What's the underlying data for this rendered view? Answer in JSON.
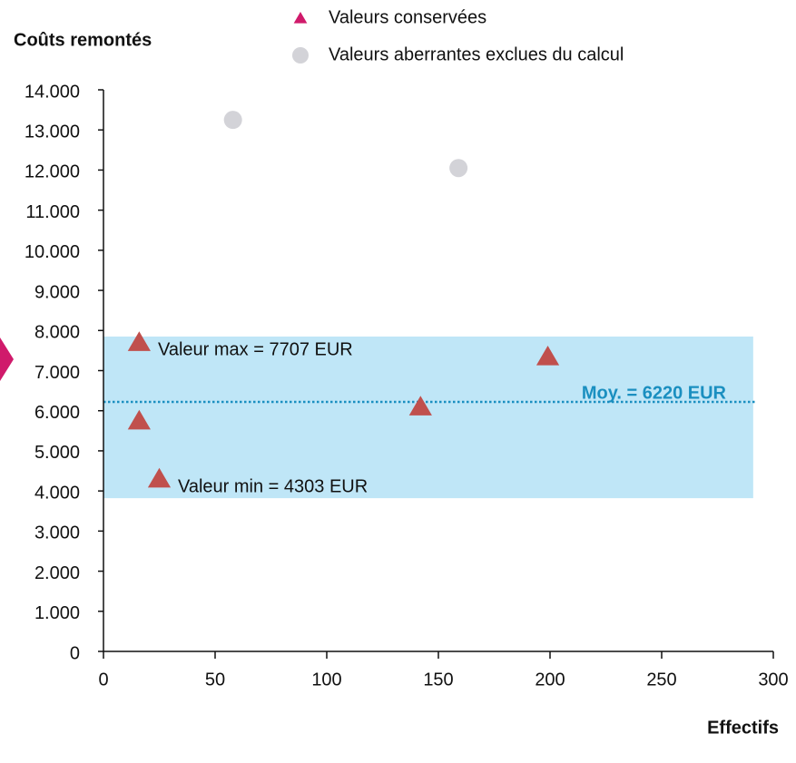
{
  "chart_data": {
    "type": "scatter",
    "y_label": "Coûts remontés",
    "x_label": "Effectifs",
    "series": [
      {
        "name": "Valeurs conservées",
        "marker": "triangle",
        "color": "#c0504d",
        "legend_color": "#d01a6b",
        "x": [
          16,
          16,
          25,
          142,
          199
        ],
        "values": [
          7707,
          5750,
          4303,
          6100,
          7350
        ]
      },
      {
        "name": "Valeurs aberrantes exclues du calcul",
        "marker": "circle",
        "color": "#d3d3d8",
        "x": [
          58,
          159
        ],
        "values": [
          13250,
          12050
        ]
      }
    ],
    "band": {
      "ymin": 3820,
      "ymax": 7850,
      "xmax": 291,
      "color": "#bfe6f7"
    },
    "mean": {
      "value": 6220,
      "label": "Moy. = 6220 EUR",
      "color": "#1a8fc0"
    },
    "annotations": [
      "Valeur max = 7707 EUR",
      "Valeur min = 4303 EUR"
    ],
    "xlim": [
      0,
      300
    ],
    "xticks": [
      0,
      50,
      100,
      150,
      200,
      250,
      300
    ],
    "ylim": [
      0,
      14000
    ],
    "yticks": [
      0,
      {
        "value": 1000,
        "label": "1.000"
      },
      {
        "value": 2000,
        "label": "2.000"
      },
      {
        "value": 3000,
        "label": "3.000"
      },
      {
        "value": 4000,
        "label": "4.000"
      },
      {
        "value": 5000,
        "label": "5.000"
      },
      {
        "value": 6000,
        "label": "6.000"
      },
      {
        "value": 7000,
        "label": "7.000"
      },
      {
        "value": 8000,
        "label": "8.000"
      },
      {
        "value": 9000,
        "label": "9.000"
      },
      {
        "value": 10000,
        "label": "10.000"
      },
      {
        "value": 11000,
        "label": "11.000"
      },
      {
        "value": 12000,
        "label": "12.000"
      },
      {
        "value": 13000,
        "label": "13.000"
      },
      {
        "value": 14000,
        "label": "14.000"
      }
    ]
  }
}
